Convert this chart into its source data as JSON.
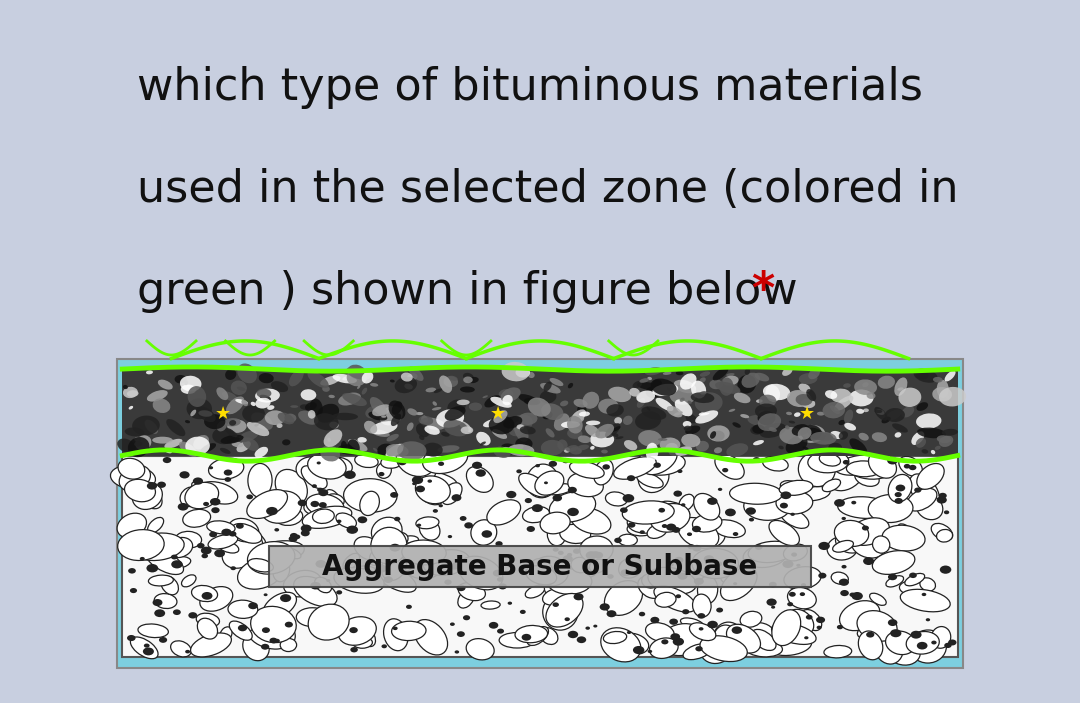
{
  "bg_color": "#ffffff",
  "outer_bg": "#c8cfe0",
  "title_line1": "which type of bituminous materials",
  "title_line2": "used in the selected zone (colored in",
  "title_line3": "green ) shown in figure below ",
  "title_asterisk": "*",
  "title_fontsize": 32,
  "title_color": "#111111",
  "asterisk_color": "#cc0000",
  "label_text": "Aggregate Base or Subbase",
  "label_fontsize": 20,
  "fig_bg": "#7dcfdf",
  "green_line_color": "#66ff00",
  "label_box_color": "#aaaaaa"
}
